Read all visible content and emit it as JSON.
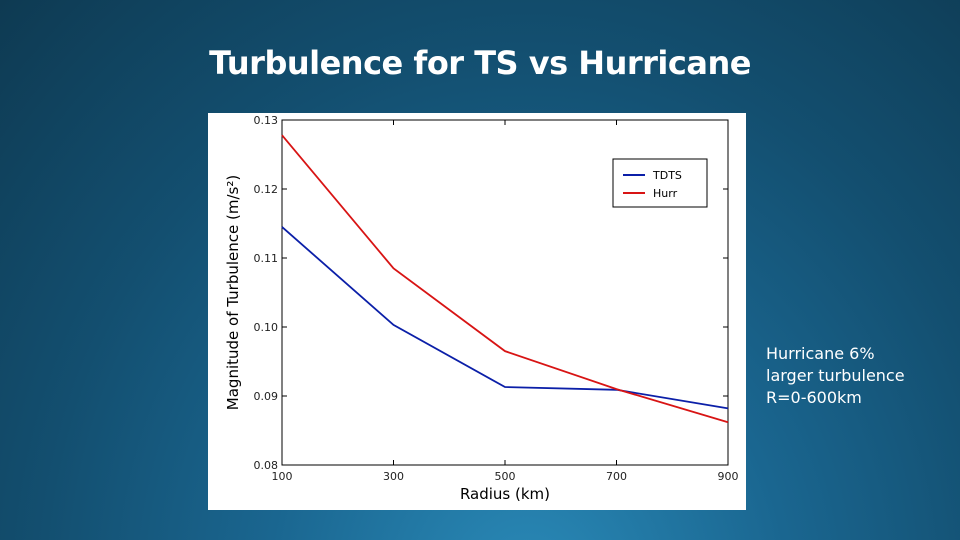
{
  "slide": {
    "title": "Turbulence for TS vs Hurricane",
    "note_lines": [
      "Hurricane 6%",
      "larger turbulence",
      "R=0-600km"
    ]
  },
  "chart_data": {
    "type": "line",
    "x": [
      100,
      300,
      500,
      700,
      900
    ],
    "series": [
      {
        "name": "TDTS",
        "color": "#0b1fa8",
        "values": [
          0.1145,
          0.1003,
          0.0913,
          0.0909,
          0.0882
        ]
      },
      {
        "name": "Hurr",
        "color": "#d81414",
        "values": [
          0.1278,
          0.1085,
          0.0965,
          0.091,
          0.0862
        ]
      }
    ],
    "xlabel": "Radius (km)",
    "ylabel": "Magnitude of Turbulence (m/s²)",
    "xlim": [
      100,
      900
    ],
    "ylim": [
      0.08,
      0.13
    ],
    "xticks": [
      "100",
      "300",
      "500",
      "700",
      "900"
    ],
    "yticks": [
      "0.08",
      "0.09",
      "0.10",
      "0.11",
      "0.12",
      "0.13"
    ],
    "grid": false,
    "legend_position": "top-right"
  }
}
